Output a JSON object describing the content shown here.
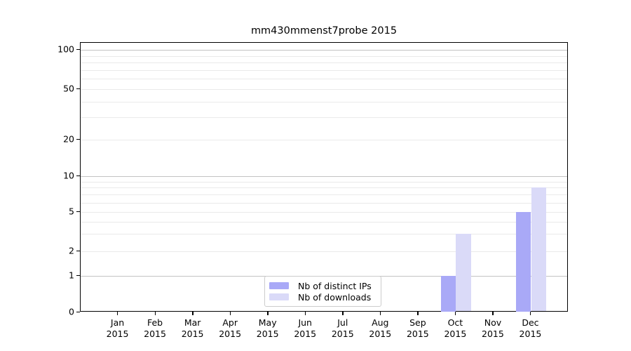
{
  "title": "mm430mmenst7probe 2015",
  "chart_data": {
    "type": "bar",
    "title": "mm430mmenst7probe 2015",
    "categories": [
      {
        "month": "Jan",
        "year": "2015"
      },
      {
        "month": "Feb",
        "year": "2015"
      },
      {
        "month": "Mar",
        "year": "2015"
      },
      {
        "month": "Apr",
        "year": "2015"
      },
      {
        "month": "May",
        "year": "2015"
      },
      {
        "month": "Jun",
        "year": "2015"
      },
      {
        "month": "Jul",
        "year": "2015"
      },
      {
        "month": "Aug",
        "year": "2015"
      },
      {
        "month": "Sep",
        "year": "2015"
      },
      {
        "month": "Oct",
        "year": "2015"
      },
      {
        "month": "Nov",
        "year": "2015"
      },
      {
        "month": "Dec",
        "year": "2015"
      }
    ],
    "series": [
      {
        "name": "Nb of distinct IPs",
        "color": "#a9a9f7",
        "values": [
          0,
          0,
          0,
          0,
          0,
          0,
          0,
          0,
          0,
          1,
          0,
          5
        ]
      },
      {
        "name": "Nb of downloads",
        "color": "#dadaf8",
        "values": [
          0,
          0,
          0,
          0,
          0,
          0,
          0,
          0,
          0,
          3,
          0,
          8
        ]
      }
    ],
    "xlabel": "",
    "ylabel": "",
    "yscale": "symlog",
    "ylim": [
      0,
      113
    ],
    "ytick_values": [
      0,
      1,
      2,
      5,
      10,
      20,
      50,
      100
    ],
    "ytick_labels": [
      "0",
      "1",
      "2",
      "5",
      "10",
      "20",
      "50",
      "100"
    ],
    "major_grid_values": [
      1,
      10,
      100
    ],
    "minor_grid_values": [
      2,
      3,
      4,
      5,
      6,
      7,
      8,
      9,
      20,
      30,
      40,
      50,
      60,
      70,
      80,
      90
    ],
    "grid": "horizontal",
    "legend_position": "lower center"
  },
  "legend": {
    "items": [
      {
        "label": "Nb of distinct IPs"
      },
      {
        "label": "Nb of downloads"
      }
    ]
  }
}
